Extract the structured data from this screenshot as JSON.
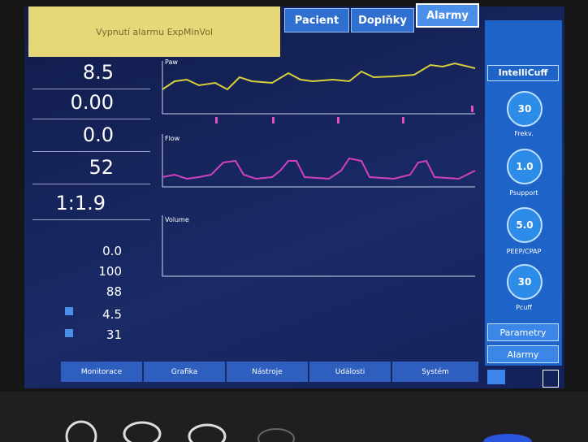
{
  "header": {
    "alarm_message": "Vypnutí alarmu ExpMinVol",
    "tabs": [
      "Pacient",
      "Doplňky",
      "Alarmy"
    ]
  },
  "monitoring": [
    "8.5",
    "0.00",
    "0.0",
    "52",
    "1:1.9"
  ],
  "secondary_monitoring": [
    "0.0",
    "100",
    "88",
    "4.5",
    "31"
  ],
  "waveforms": [
    "Paw",
    "Flow",
    "Volume"
  ],
  "side_panel": {
    "title": "IntelliCuff",
    "controls": [
      {
        "value": "30",
        "label": "Frekv."
      },
      {
        "value": "1.0",
        "label": "Psupport"
      },
      {
        "value": "5.0",
        "label": "PEEP/CPAP"
      },
      {
        "value": "30",
        "label": "Pcuff"
      }
    ],
    "buttons": [
      "Parametry",
      "Alarmy"
    ]
  },
  "bottom_tabs": [
    "Monitorace",
    "Grafika",
    "Nástroje",
    "Události",
    "Systém"
  ]
}
